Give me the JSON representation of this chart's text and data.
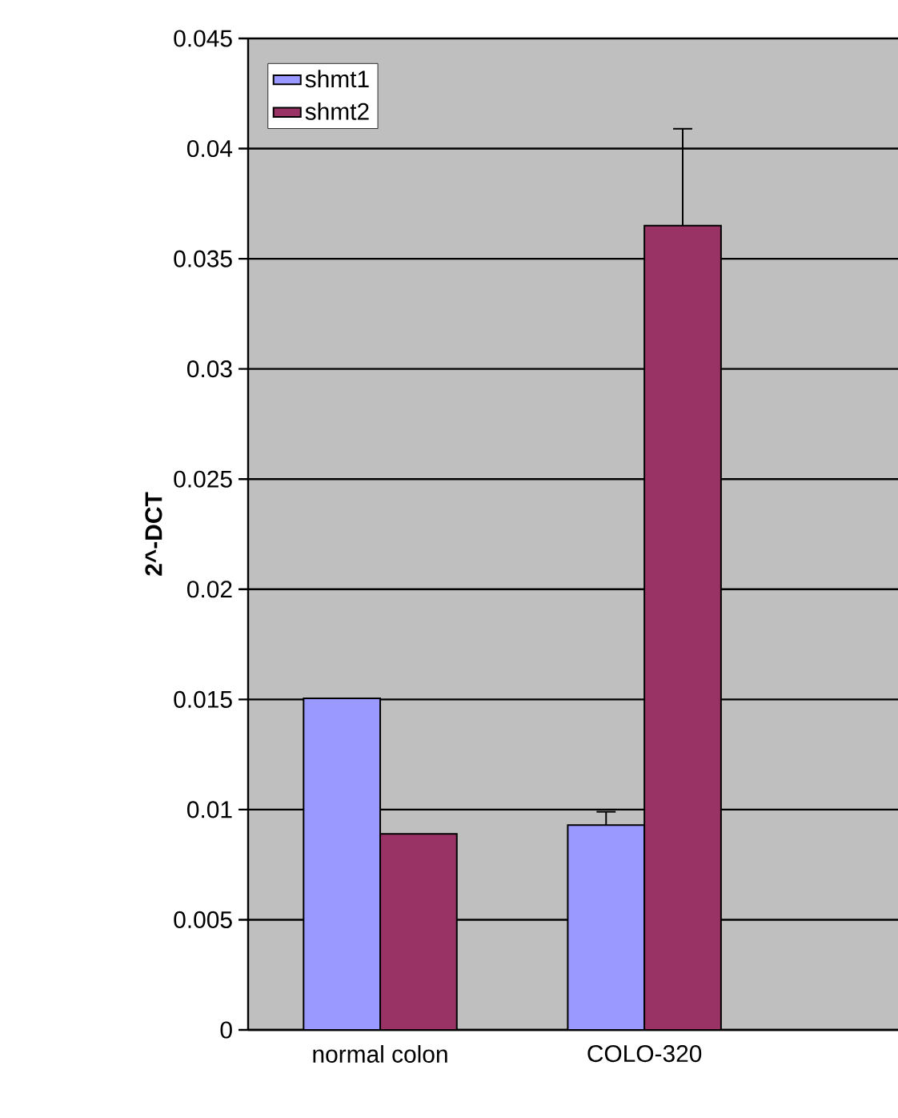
{
  "chart_data": {
    "type": "bar",
    "ylabel": "2^-DCT",
    "categories": [
      "normal colon",
      "COLO-320"
    ],
    "series": [
      {
        "name": "shmt1",
        "color": "#9999ff",
        "values": [
          0.01505,
          0.0093
        ],
        "errors": [
          null,
          [
            0.0093,
            0.0099
          ]
        ]
      },
      {
        "name": "shmt2",
        "color": "#993366",
        "values": [
          0.0089,
          0.0365
        ],
        "errors": [
          null,
          [
            0.0365,
            0.0409
          ]
        ]
      }
    ],
    "ylim": [
      0,
      0.045
    ],
    "yticks": [
      0,
      0.005,
      0.01,
      0.015,
      0.02,
      0.025,
      0.03,
      0.035,
      0.04,
      0.045
    ],
    "grid": "y",
    "legend": "top left"
  }
}
